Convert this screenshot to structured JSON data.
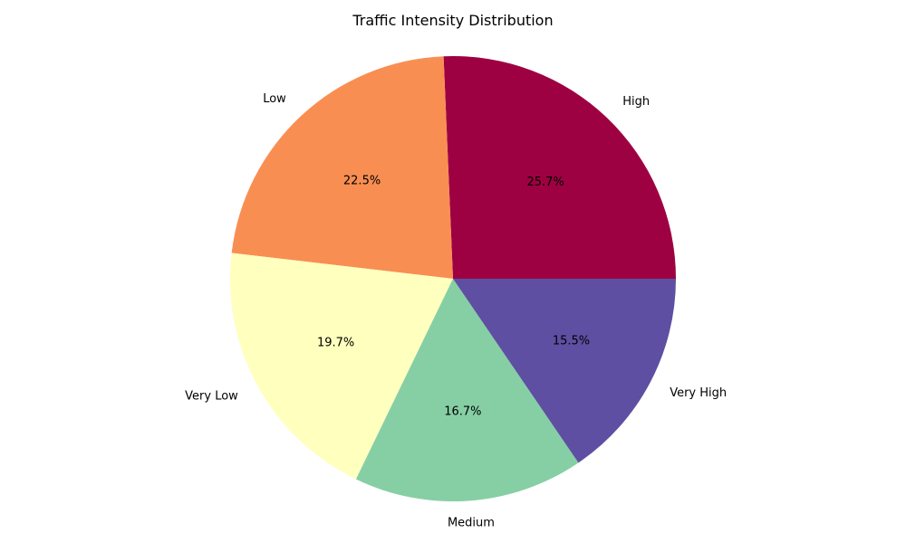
{
  "chart_data": {
    "type": "pie",
    "title": "Traffic Intensity Distribution",
    "start_angle_deg": 0,
    "direction": "counterclockwise",
    "slices": [
      {
        "label": "High",
        "value": 25.7,
        "pct_label": "25.7%",
        "color": "#9e0142"
      },
      {
        "label": "Low",
        "value": 22.5,
        "pct_label": "22.5%",
        "color": "#f98e52"
      },
      {
        "label": "Very Low",
        "value": 19.7,
        "pct_label": "19.7%",
        "color": "#ffffbe"
      },
      {
        "label": "Medium",
        "value": 16.7,
        "pct_label": "16.7%",
        "color": "#86cfa5"
      },
      {
        "label": "Very High",
        "value": 15.5,
        "pct_label": "15.5%",
        "color": "#5e4fa2"
      }
    ]
  }
}
